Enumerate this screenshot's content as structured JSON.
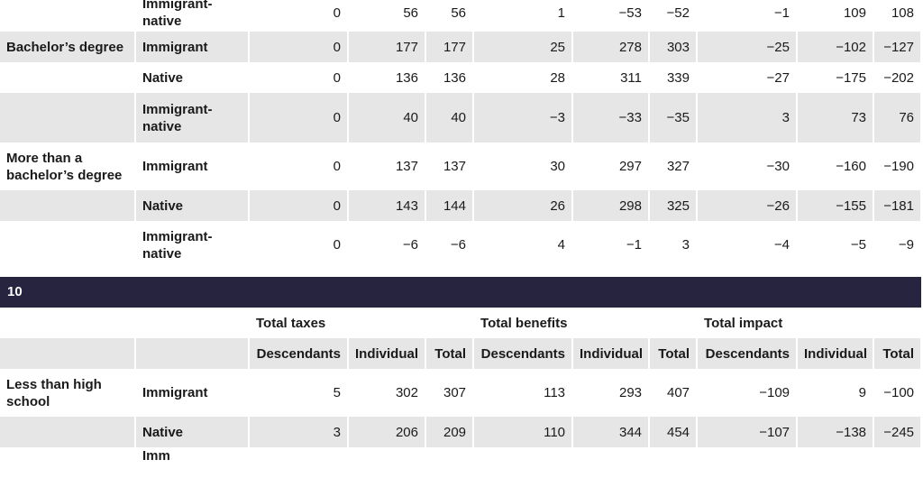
{
  "table1": {
    "rows": [
      {
        "group": "",
        "type": "Immigrant-native",
        "vals": [
          "0",
          "56",
          "56",
          "1",
          "−53",
          "−52",
          "−1",
          "109",
          "108"
        ]
      },
      {
        "group": "Bachelor’s degree",
        "type": "Immigrant",
        "vals": [
          "0",
          "177",
          "177",
          "25",
          "278",
          "303",
          "−25",
          "−102",
          "−127"
        ]
      },
      {
        "group": "",
        "type": "Native",
        "vals": [
          "0",
          "136",
          "136",
          "28",
          "311",
          "339",
          "−27",
          "−175",
          "−202"
        ]
      },
      {
        "group": "",
        "type": "Immigrant-native",
        "vals": [
          "0",
          "40",
          "40",
          "−3",
          "−33",
          "−35",
          "3",
          "73",
          "76"
        ]
      },
      {
        "group": "More than a bachelor’s degree",
        "type": "Immigrant",
        "vals": [
          "0",
          "137",
          "137",
          "30",
          "297",
          "327",
          "−30",
          "−160",
          "−190"
        ]
      },
      {
        "group": "",
        "type": "Native",
        "vals": [
          "0",
          "143",
          "144",
          "26",
          "298",
          "325",
          "−26",
          "−155",
          "−181"
        ]
      },
      {
        "group": "",
        "type": "Immigrant-native",
        "vals": [
          "0",
          "−6",
          "−6",
          "4",
          "−1",
          "3",
          "−4",
          "−5",
          "−9"
        ]
      }
    ]
  },
  "section_label": "10",
  "table2": {
    "group_headers": [
      "Total taxes",
      "Total benefits",
      "Total impact"
    ],
    "sub_headers": [
      "Descendants",
      "Individual",
      "Total",
      "Descendants",
      "Individual",
      "Total",
      "Descendants",
      "Individual",
      "Total"
    ],
    "rows": [
      {
        "group": "Less than high school",
        "type": "Immigrant",
        "vals": [
          "5",
          "302",
          "307",
          "113",
          "293",
          "407",
          "−109",
          "9",
          "−100"
        ]
      },
      {
        "group": "",
        "type": "Native",
        "vals": [
          "3",
          "206",
          "209",
          "110",
          "344",
          "454",
          "−107",
          "−138",
          "−245"
        ]
      },
      {
        "group": "",
        "type": "Imm",
        "vals": [
          "",
          "",
          "",
          "",
          "",
          "",
          "",
          "",
          ""
        ]
      }
    ]
  }
}
